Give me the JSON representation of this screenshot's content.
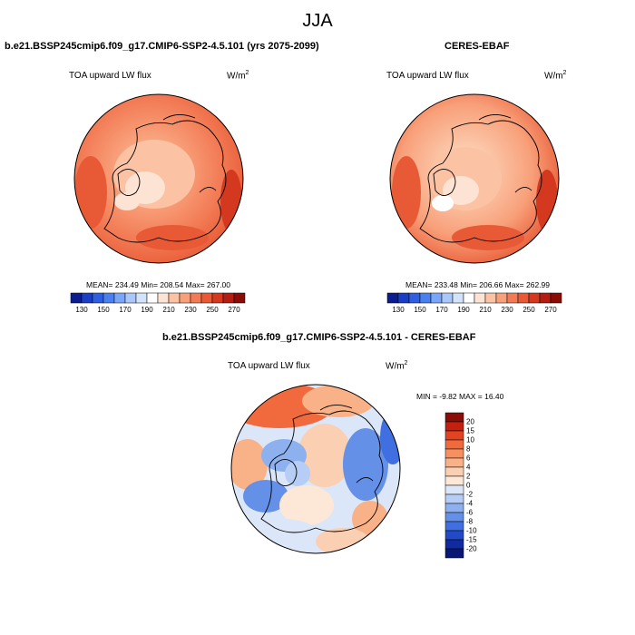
{
  "season": "JJA",
  "panels": [
    {
      "title": "b.e21.BSSP245cmip6.f09_g17.CMIP6-SSP2-4.5.101 (yrs 2075-2099)",
      "variable": "TOA upward LW flux",
      "units_base": "W/m",
      "units_exp": "2",
      "stats": "MEAN= 234.49  Min= 208.54  Max= 267.00"
    },
    {
      "title": "CERES-EBAF",
      "variable": "TOA upward LW flux",
      "units_base": "W/m",
      "units_exp": "2",
      "stats": "MEAN= 233.48  Min= 206.66  Max= 262.99"
    }
  ],
  "colorbar": {
    "labels": [
      "130",
      "150",
      "170",
      "190",
      "210",
      "230",
      "250",
      "270"
    ],
    "colors": [
      "#0a1e8f",
      "#1a3fc4",
      "#2d5fe0",
      "#4a7ff0",
      "#7aa6f7",
      "#a9c7f8",
      "#d3e3f9",
      "#ffffff",
      "#fde3d3",
      "#fbc3a4",
      "#f8a07a",
      "#f27b55",
      "#e85a35",
      "#d4391f",
      "#b31d12",
      "#8a0c06"
    ]
  },
  "diff": {
    "title": "b.e21.BSSP245cmip6.f09_g17.CMIP6-SSP2-4.5.101 - CERES-EBAF",
    "variable": "TOA upward LW flux",
    "units_base": "W/m",
    "units_exp": "2",
    "stats": "MIN =  -9.82 MAX =  16.40",
    "labels": [
      "20",
      "15",
      "10",
      "8",
      "6",
      "4",
      "2",
      "0",
      "-2",
      "-4",
      "-6",
      "-8",
      "-10",
      "-15",
      "-20"
    ],
    "colors": [
      "#8a0c06",
      "#c4200f",
      "#e24322",
      "#f06a3d",
      "#f6915f",
      "#f9b287",
      "#fbd0b2",
      "#fde8d8",
      "#dbe6f8",
      "#b6cdf5",
      "#8db0ee",
      "#6490e8",
      "#3f6fe0",
      "#2249c8",
      "#112aa0",
      "#0a1775"
    ]
  }
}
